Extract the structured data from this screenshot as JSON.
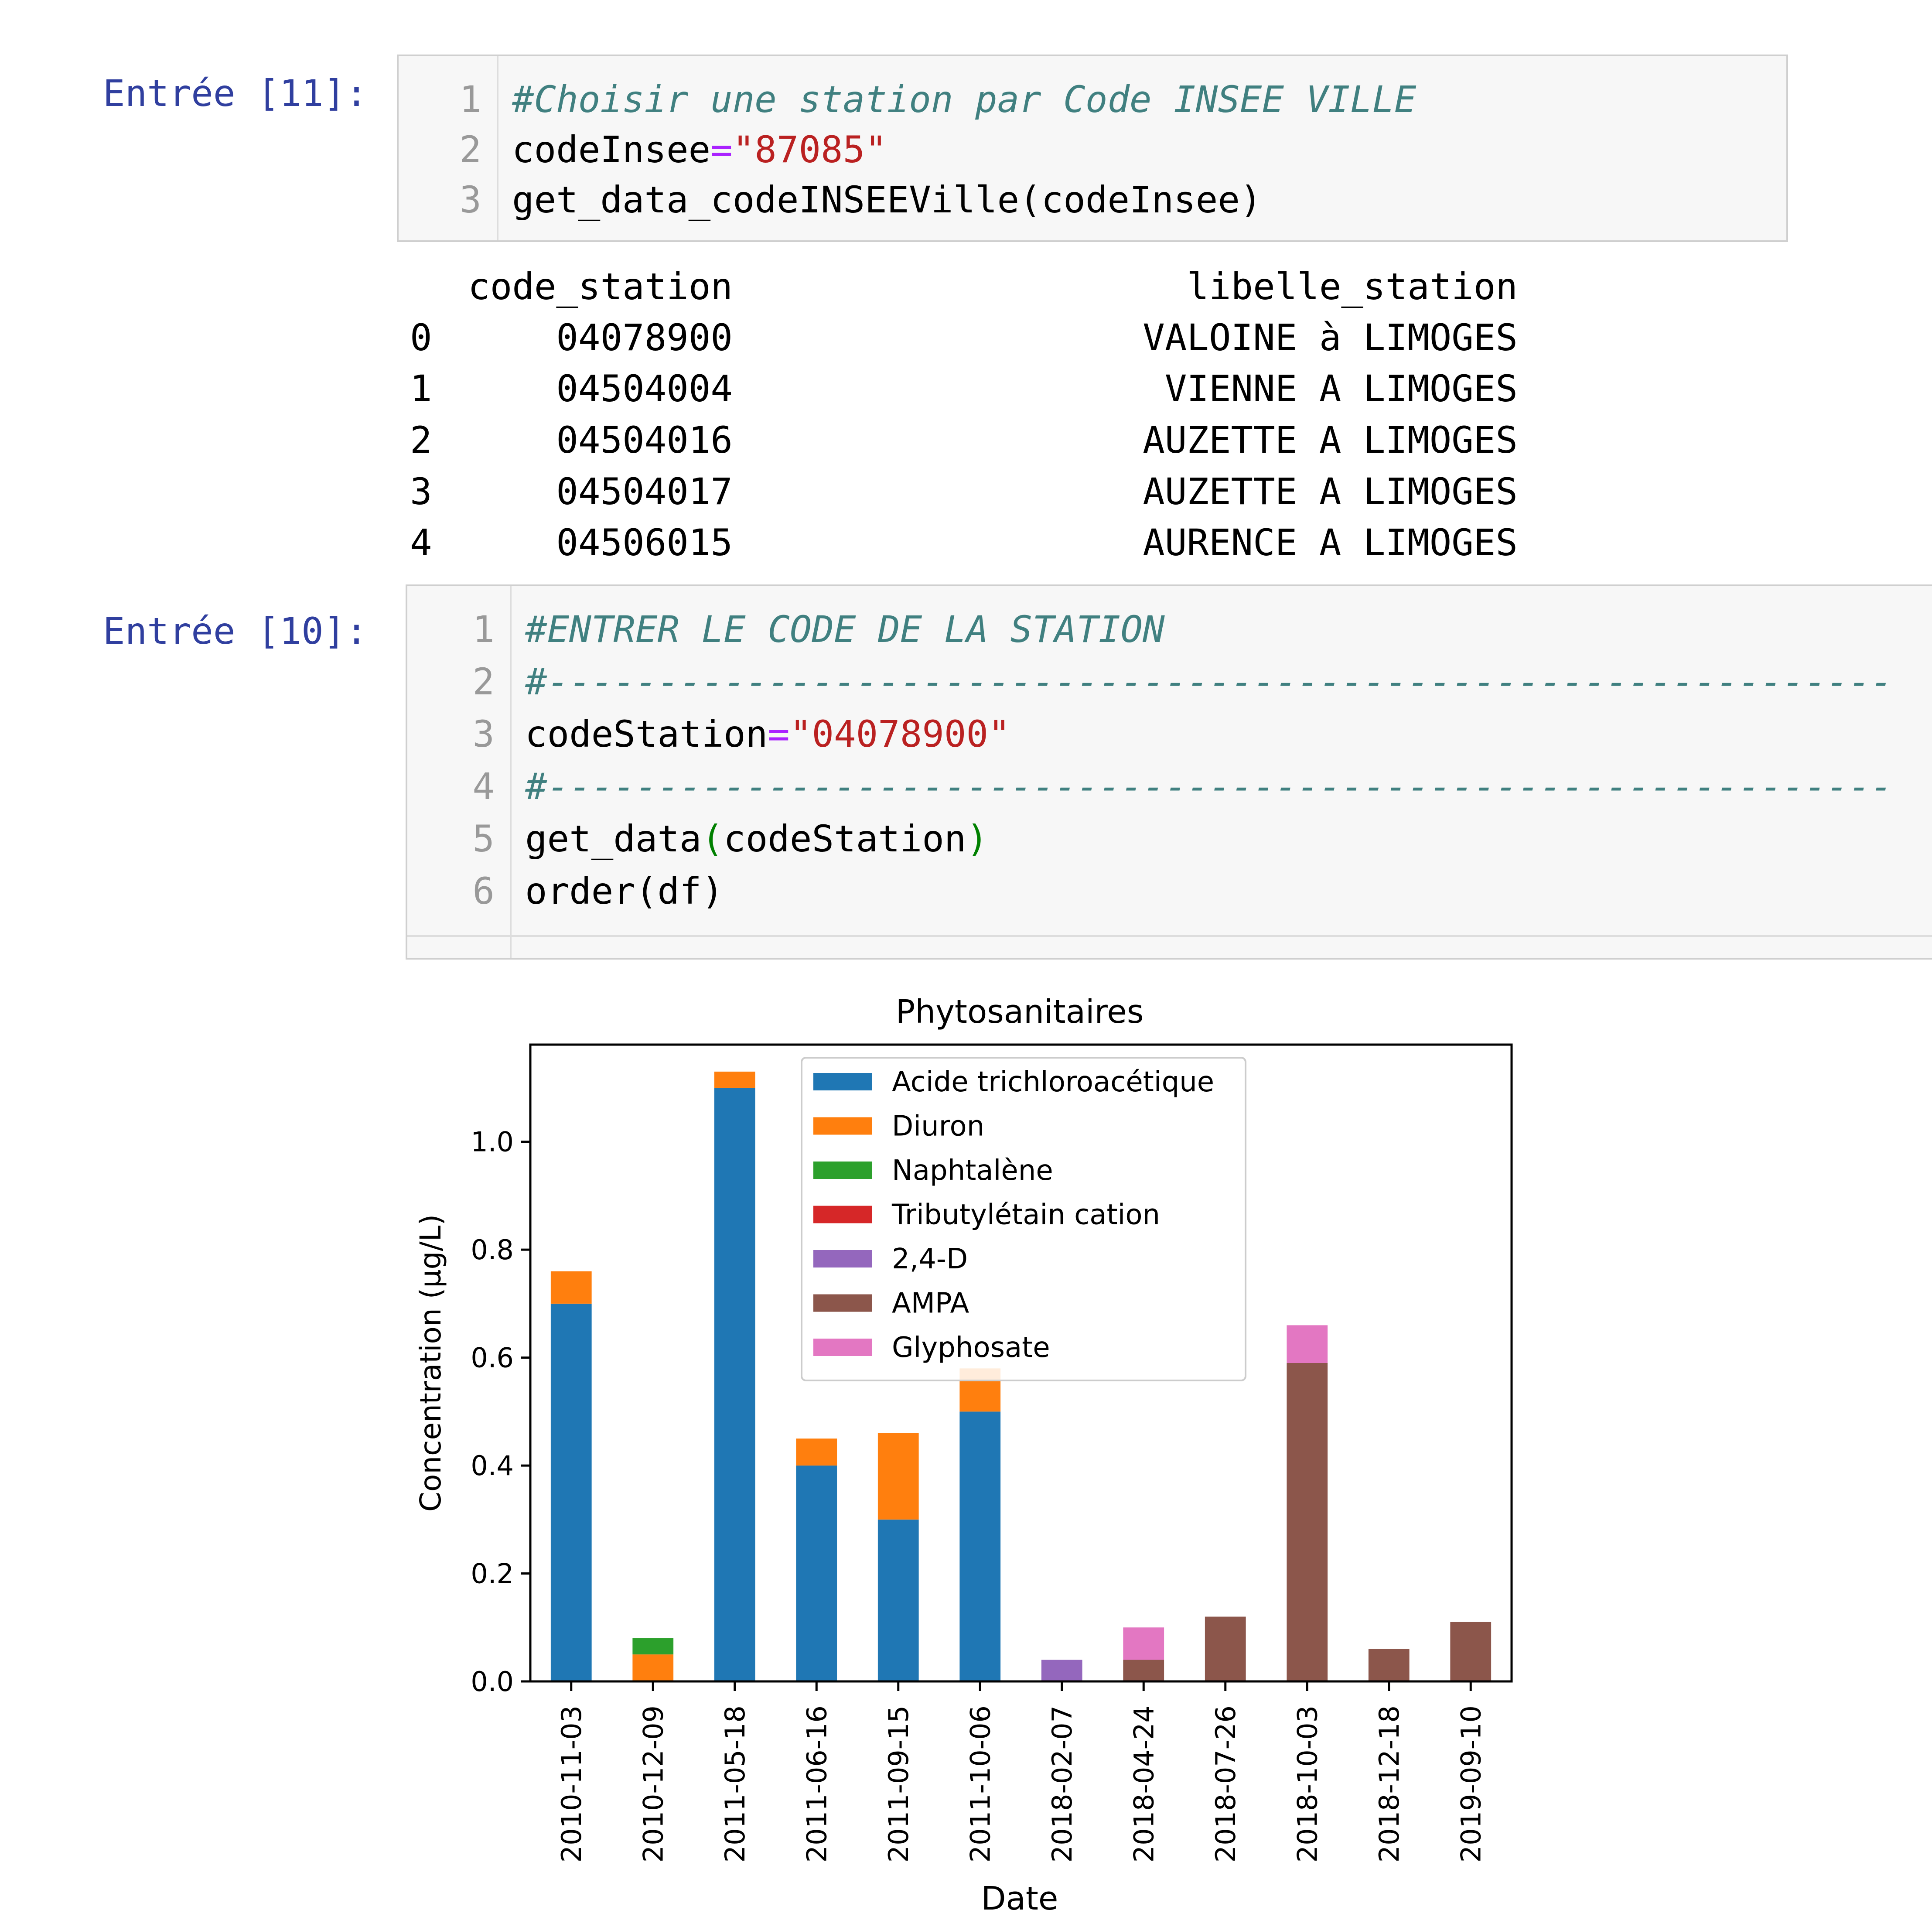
{
  "cell1": {
    "prompt": "Entrée [11]:",
    "lines": [
      {
        "n": "1",
        "comment": "#Choisir une station par Code INSEE VILLE"
      },
      {
        "n": "2",
        "var": "codeInsee",
        "eq": "=",
        "str": "\"87085\""
      },
      {
        "n": "3",
        "text": "get_data_codeINSEEVille(codeInsee)"
      }
    ]
  },
  "output1": {
    "headers": [
      "code_station",
      "libelle_station"
    ],
    "rows": [
      {
        "idx": "0",
        "code": "04078900",
        "label": "VALOINE à LIMOGES"
      },
      {
        "idx": "1",
        "code": "04504004",
        "label": "VIENNE A LIMOGES"
      },
      {
        "idx": "2",
        "code": "04504016",
        "label": "AUZETTE A LIMOGES"
      },
      {
        "idx": "3",
        "code": "04504017",
        "label": "AUZETTE A LIMOGES"
      },
      {
        "idx": "4",
        "code": "04506015",
        "label": "AURENCE A LIMOGES"
      }
    ]
  },
  "cell2": {
    "prompt": "Entrée [10]:",
    "lines": [
      {
        "n": "1",
        "comment": "#ENTRER LE CODE DE LA STATION"
      },
      {
        "n": "2",
        "comment": "#-------------------------------------------------------------"
      },
      {
        "n": "3",
        "var": "codeStation",
        "eq": "=",
        "str": "\"04078900\""
      },
      {
        "n": "4",
        "comment": "#-------------------------------------------------------------"
      },
      {
        "n": "5",
        "fn": "get_data",
        "lp": "(",
        "arg": "codeStation",
        "rp": ")"
      },
      {
        "n": "6",
        "text": "order(df)"
      }
    ]
  },
  "chart_data": {
    "type": "bar",
    "stacked": true,
    "title": "Phytosanitaires",
    "xlabel": "Date",
    "ylabel": "Concentration (µg/L)",
    "ylim": [
      0,
      1.18
    ],
    "yticks": [
      "0.0",
      "0.2",
      "0.4",
      "0.6",
      "0.8",
      "1.0"
    ],
    "legend_position": "top-center",
    "categories": [
      "2010-11-03",
      "2010-12-09",
      "2011-05-18",
      "2011-06-16",
      "2011-09-15",
      "2011-10-06",
      "2018-02-07",
      "2018-04-24",
      "2018-07-26",
      "2018-10-03",
      "2018-12-18",
      "2019-09-10"
    ],
    "series": [
      {
        "name": "Acide trichloroacétique",
        "color": "#1f77b4",
        "values": [
          0.7,
          0,
          1.1,
          0.4,
          0.3,
          0.5,
          0,
          0,
          0,
          0,
          0,
          0
        ]
      },
      {
        "name": "Diuron",
        "color": "#ff7f0e",
        "values": [
          0.06,
          0.05,
          0.03,
          0.05,
          0.16,
          0.08,
          0,
          0,
          0,
          0,
          0,
          0
        ]
      },
      {
        "name": "Naphtalène",
        "color": "#2ca02c",
        "values": [
          0,
          0.03,
          0,
          0,
          0,
          0,
          0,
          0,
          0,
          0,
          0,
          0
        ]
      },
      {
        "name": "Tributylétain cation",
        "color": "#d62728",
        "values": [
          0,
          0,
          0,
          0,
          0,
          0,
          0,
          0,
          0,
          0,
          0,
          0
        ]
      },
      {
        "name": "2,4-D",
        "color": "#9467bd",
        "values": [
          0,
          0,
          0,
          0,
          0,
          0,
          0.04,
          0,
          0,
          0,
          0,
          0
        ]
      },
      {
        "name": "AMPA",
        "color": "#8c564b",
        "values": [
          0,
          0,
          0,
          0,
          0,
          0,
          0,
          0.04,
          0.12,
          0.59,
          0.06,
          0.11
        ]
      },
      {
        "name": "Glyphosate",
        "color": "#e377c2",
        "values": [
          0,
          0,
          0,
          0,
          0,
          0,
          0,
          0.06,
          0,
          0.07,
          0,
          0
        ]
      }
    ]
  }
}
